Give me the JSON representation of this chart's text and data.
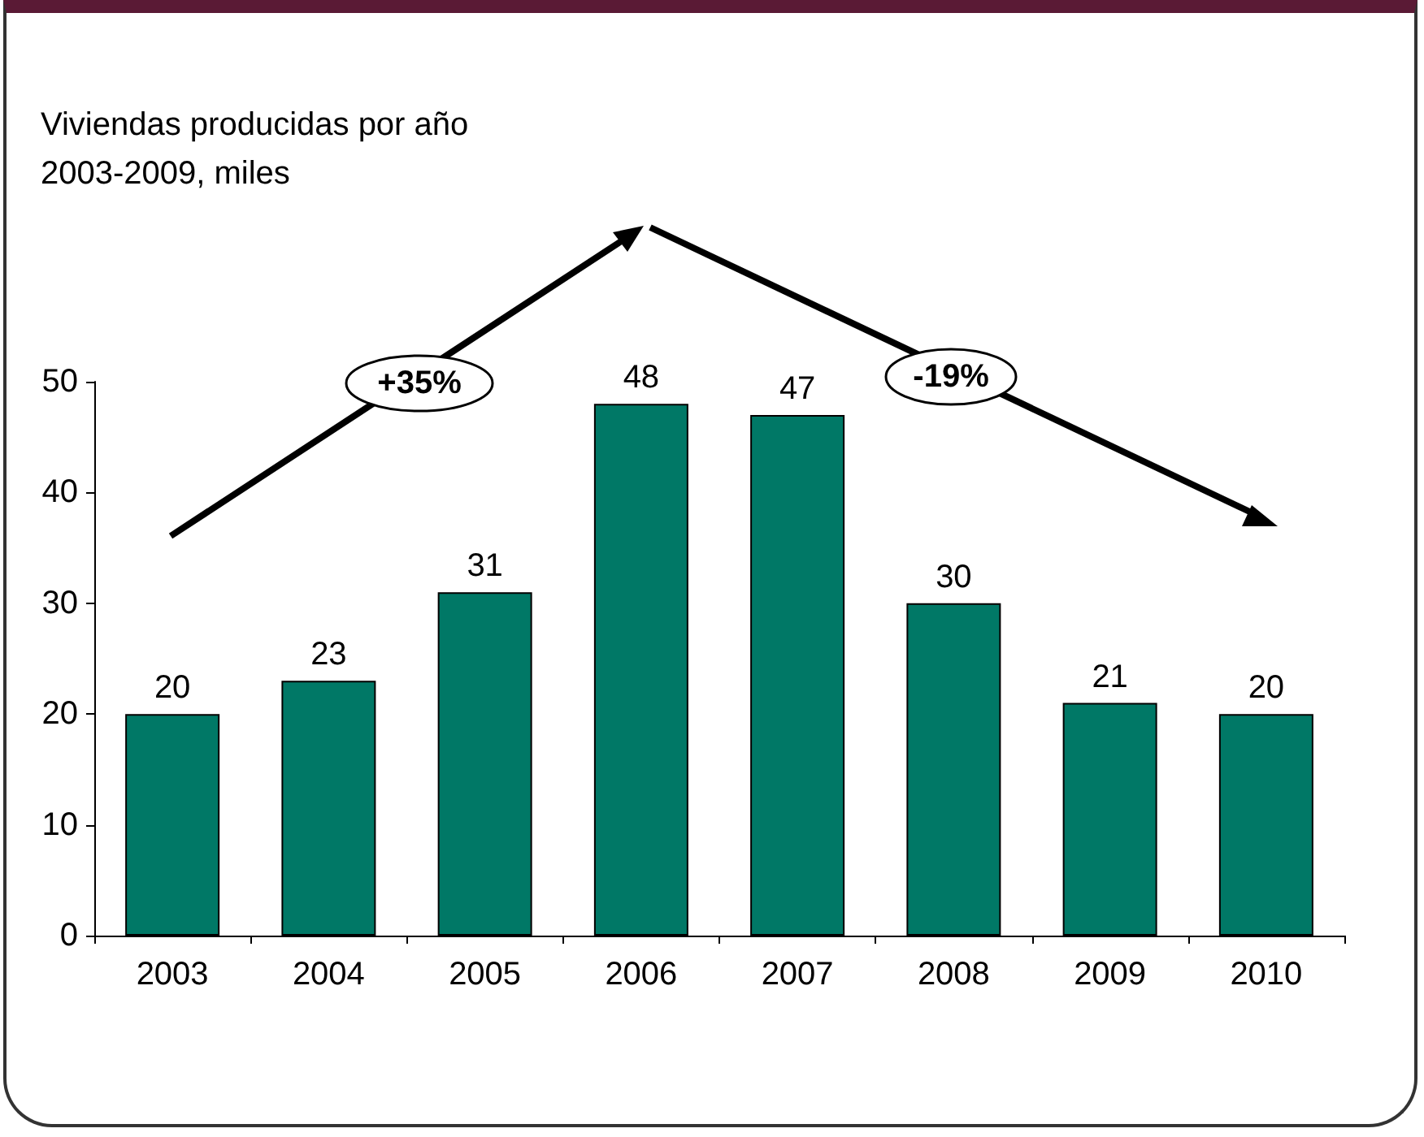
{
  "chart_data": {
    "type": "bar",
    "title": "Viviendas producidas por año",
    "subtitle": "2003-2009, miles",
    "categories": [
      "2003",
      "2004",
      "2005",
      "2006",
      "2007",
      "2008",
      "2009",
      "2010"
    ],
    "values": [
      20,
      23,
      31,
      48,
      47,
      30,
      21,
      20
    ],
    "color": "#007866",
    "ylim": [
      0,
      50
    ],
    "yticks": [
      0,
      10,
      20,
      30,
      40,
      50
    ],
    "grid": false,
    "data_labels": true,
    "annotations": [
      "+35%",
      "-19%"
    ]
  }
}
